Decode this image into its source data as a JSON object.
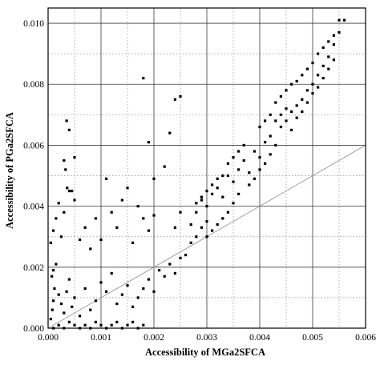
{
  "chart_data": {
    "type": "scatter",
    "title": "",
    "xlabel": "Accessibility of MGa2SFCA",
    "ylabel": "Accessibility of PGa2SFCA",
    "xlim": [
      0,
      0.006
    ],
    "ylim": [
      0,
      0.0105
    ],
    "x_ticks": [
      "0.000",
      "0.001",
      "0.002",
      "0.003",
      "0.004",
      "0.005",
      "0.006"
    ],
    "y_ticks": [
      "0.000",
      "0.002",
      "0.004",
      "0.006",
      "0.008",
      "0.010"
    ],
    "grid": "solid major lines with dotted minor lines",
    "reference_line": {
      "description": "y = x",
      "from": [
        0,
        0
      ],
      "to": [
        0.006,
        0.006
      ]
    },
    "series": [
      {
        "marker": "square",
        "color": "#000000",
        "points": [
          [
            0.0001,
            0.0
          ],
          [
            0.0002,
            0.0001
          ],
          [
            0.0003,
            0.0
          ],
          [
            0.0004,
            0.0002
          ],
          [
            0.0005,
            0.0001
          ],
          [
            0.0006,
            0.0
          ],
          [
            0.0007,
            0.0001
          ],
          [
            0.0008,
            0.0
          ],
          [
            0.0009,
            0.0002
          ],
          [
            0.001,
            0.0001
          ],
          [
            0.0011,
            0.0
          ],
          [
            0.0012,
            0.0001
          ],
          [
            0.0013,
            0.0002
          ],
          [
            0.0014,
            0.0
          ],
          [
            0.0015,
            0.0001
          ],
          [
            0.0016,
            0.0002
          ],
          [
            0.0017,
            0.0
          ],
          [
            0.0018,
            0.0001
          ],
          [
            5e-05,
            0.0003
          ],
          [
            8e-05,
            0.0006
          ],
          [
            0.0001,
            0.0009
          ],
          [
            0.00012,
            0.0013
          ],
          [
            7e-05,
            0.0017
          ],
          [
            0.0001,
            0.0019
          ],
          [
            0.00015,
            0.0021
          ],
          [
            0.0002,
            0.0011
          ],
          [
            0.00025,
            0.0008
          ],
          [
            0.0003,
            0.0005
          ],
          [
            0.00035,
            0.0012
          ],
          [
            0.0004,
            0.0016
          ],
          [
            0.00045,
            0.0007
          ],
          [
            0.0005,
            0.001
          ],
          [
            0.0006,
            0.0004
          ],
          [
            0.0007,
            0.0013
          ],
          [
            0.0008,
            0.0006
          ],
          [
            0.0009,
            0.0009
          ],
          [
            0.001,
            0.0015
          ],
          [
            0.0011,
            0.0012
          ],
          [
            0.0012,
            0.0018
          ],
          [
            0.0013,
            0.0008
          ],
          [
            0.0014,
            0.0011
          ],
          [
            0.0015,
            0.0014
          ],
          [
            0.0016,
            0.0007
          ],
          [
            0.0017,
            0.001
          ],
          [
            0.0018,
            0.0013
          ],
          [
            0.0019,
            0.0016
          ],
          [
            0.002,
            0.0012
          ],
          [
            0.0021,
            0.0019
          ],
          [
            0.0022,
            0.0017
          ],
          [
            0.0023,
            0.0021
          ],
          [
            0.0024,
            0.0018
          ],
          [
            0.0025,
            0.0023
          ],
          [
            5e-05,
            0.0028
          ],
          [
            0.0001,
            0.0032
          ],
          [
            0.00015,
            0.0036
          ],
          [
            0.0002,
            0.0041
          ],
          [
            0.00025,
            0.003
          ],
          [
            0.0003,
            0.0055
          ],
          [
            0.00033,
            0.0052
          ],
          [
            0.00036,
            0.0046
          ],
          [
            0.0004,
            0.0045
          ],
          [
            0.00045,
            0.0045
          ],
          [
            0.0005,
            0.0056
          ],
          [
            0.00035,
            0.0068
          ],
          [
            0.0004,
            0.0065
          ],
          [
            0.0003,
            0.0038
          ],
          [
            0.0005,
            0.0042
          ],
          [
            0.0006,
            0.0029
          ],
          [
            0.0007,
            0.0033
          ],
          [
            0.0008,
            0.0026
          ],
          [
            0.0009,
            0.0036
          ],
          [
            0.001,
            0.0029
          ],
          [
            0.0011,
            0.0049
          ],
          [
            0.0012,
            0.0038
          ],
          [
            0.0013,
            0.0033
          ],
          [
            0.0014,
            0.0042
          ],
          [
            0.0015,
            0.0046
          ],
          [
            0.0016,
            0.0028
          ],
          [
            0.0017,
            0.004
          ],
          [
            0.0018,
            0.0036
          ],
          [
            0.0019,
            0.0032
          ],
          [
            0.002,
            0.0037
          ],
          [
            0.002,
            0.0049
          ],
          [
            0.0019,
            0.0061
          ],
          [
            0.0018,
            0.0082
          ],
          [
            0.0023,
            0.0064
          ],
          [
            0.0024,
            0.0075
          ],
          [
            0.0025,
            0.0076
          ],
          [
            0.0022,
            0.0053
          ],
          [
            0.0024,
            0.0033
          ],
          [
            0.0025,
            0.0038
          ],
          [
            0.0026,
            0.0024
          ],
          [
            0.0027,
            0.0028
          ],
          [
            0.0028,
            0.003
          ],
          [
            0.0029,
            0.0033
          ],
          [
            0.003,
            0.0035
          ],
          [
            0.0027,
            0.0034
          ],
          [
            0.0028,
            0.0038
          ],
          [
            0.0029,
            0.0042
          ],
          [
            0.003,
            0.004
          ],
          [
            0.0031,
            0.0044
          ],
          [
            0.0032,
            0.0046
          ],
          [
            0.0033,
            0.0043
          ],
          [
            0.0034,
            0.005
          ],
          [
            0.0035,
            0.0048
          ],
          [
            0.0036,
            0.0052
          ],
          [
            0.0037,
            0.0055
          ],
          [
            0.0038,
            0.0051
          ],
          [
            0.0039,
            0.0058
          ],
          [
            0.004,
            0.0056
          ],
          [
            0.0041,
            0.0061
          ],
          [
            0.0042,
            0.0063
          ],
          [
            0.0043,
            0.006
          ],
          [
            0.0044,
            0.0066
          ],
          [
            0.0045,
            0.0068
          ],
          [
            0.0046,
            0.0071
          ],
          [
            0.0047,
            0.0073
          ],
          [
            0.0048,
            0.0075
          ],
          [
            0.0049,
            0.0078
          ],
          [
            0.005,
            0.008
          ],
          [
            0.0051,
            0.0083
          ],
          [
            0.0052,
            0.0086
          ],
          [
            0.0053,
            0.0089
          ],
          [
            0.0054,
            0.0093
          ],
          [
            0.0055,
            0.0097
          ],
          [
            0.0055,
            0.0101
          ],
          [
            0.0056,
            0.0101
          ],
          [
            0.0045,
            0.0072
          ],
          [
            0.0044,
            0.007
          ],
          [
            0.0043,
            0.0068
          ],
          [
            0.0046,
            0.0065
          ],
          [
            0.0047,
            0.0069
          ],
          [
            0.0048,
            0.0071
          ],
          [
            0.0049,
            0.0074
          ],
          [
            0.005,
            0.0077
          ],
          [
            0.0051,
            0.0079
          ],
          [
            0.0052,
            0.0082
          ],
          [
            0.0053,
            0.0085
          ],
          [
            0.0054,
            0.0088
          ],
          [
            0.0038,
            0.0047
          ],
          [
            0.0039,
            0.0049
          ],
          [
            0.004,
            0.0052
          ],
          [
            0.0041,
            0.0054
          ],
          [
            0.0042,
            0.0057
          ],
          [
            0.0036,
            0.0044
          ],
          [
            0.0035,
            0.0041
          ],
          [
            0.0034,
            0.0038
          ],
          [
            0.0033,
            0.0036
          ],
          [
            0.0032,
            0.0034
          ],
          [
            0.0031,
            0.0032
          ],
          [
            0.003,
            0.003
          ],
          [
            0.0037,
            0.006
          ],
          [
            0.0036,
            0.0058
          ],
          [
            0.0035,
            0.0056
          ],
          [
            0.0034,
            0.0054
          ],
          [
            0.0033,
            0.005
          ],
          [
            0.0032,
            0.0049
          ],
          [
            0.0031,
            0.0047
          ],
          [
            0.003,
            0.0045
          ],
          [
            0.0029,
            0.0043
          ],
          [
            0.0028,
            0.0041
          ],
          [
            0.004,
            0.0066
          ],
          [
            0.0041,
            0.0068
          ],
          [
            0.0042,
            0.007
          ],
          [
            0.0043,
            0.0074
          ],
          [
            0.0044,
            0.0076
          ],
          [
            0.0045,
            0.0078
          ],
          [
            0.0046,
            0.008
          ],
          [
            0.0047,
            0.0081
          ],
          [
            0.0048,
            0.0083
          ],
          [
            0.0049,
            0.0085
          ],
          [
            0.005,
            0.0087
          ],
          [
            0.0051,
            0.009
          ],
          [
            0.0052,
            0.0092
          ],
          [
            0.0053,
            0.0094
          ],
          [
            0.0054,
            0.0096
          ]
        ]
      }
    ]
  }
}
